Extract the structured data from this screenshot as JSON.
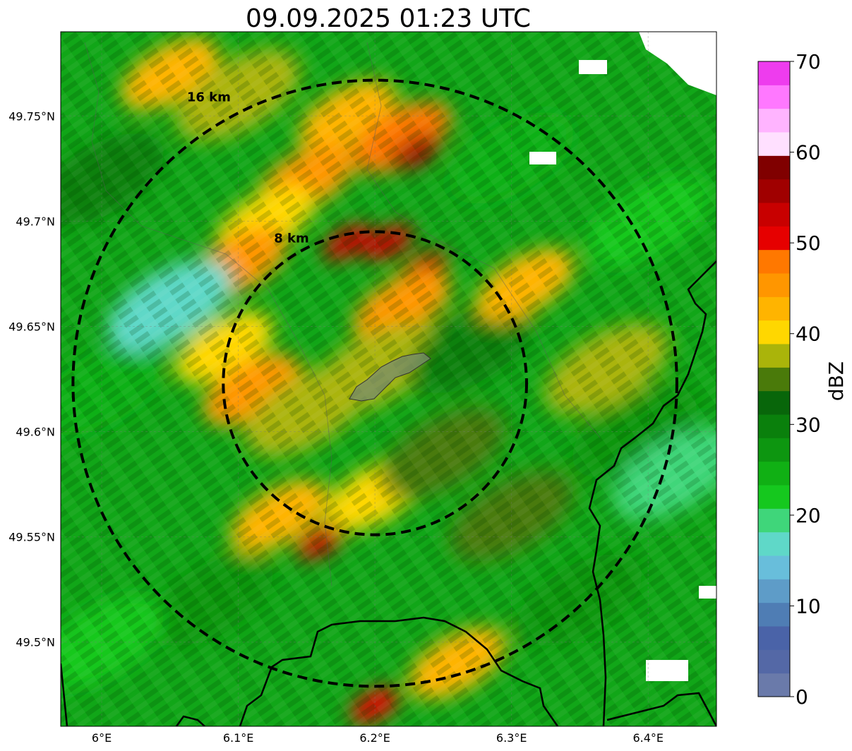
{
  "title": "09.09.2025 01:23 UTC",
  "map": {
    "lon_range": [
      5.97,
      6.45
    ],
    "lat_range": [
      49.46,
      49.79
    ],
    "x_ticks": [
      {
        "value": 6.0,
        "label": "6°E"
      },
      {
        "value": 6.1,
        "label": "6.1°E"
      },
      {
        "value": 6.2,
        "label": "6.2°E"
      },
      {
        "value": 6.3,
        "label": "6.3°E"
      },
      {
        "value": 6.4,
        "label": "6.4°E"
      }
    ],
    "y_ticks": [
      {
        "value": 49.75,
        "label": "49.75°N"
      },
      {
        "value": 49.7,
        "label": "49.7°N"
      },
      {
        "value": 49.65,
        "label": "49.65°N"
      },
      {
        "value": 49.6,
        "label": "49.6°N"
      },
      {
        "value": 49.55,
        "label": "49.55°N"
      },
      {
        "value": 49.5,
        "label": "49.5°N"
      }
    ],
    "center": {
      "lon": 6.2,
      "lat": 49.623
    },
    "range_rings": [
      {
        "label": "8 km",
        "radius_lon": 0.111,
        "radius_lat": 0.072
      },
      {
        "label": "16 km",
        "radius_lon": 0.221,
        "radius_lat": 0.144
      }
    ],
    "grid": true
  },
  "colorbar": {
    "label": "dBZ",
    "min": 0,
    "max": 70,
    "step": 5,
    "tick_labels": [
      "0",
      "10",
      "20",
      "30",
      "40",
      "50",
      "60",
      "70"
    ],
    "colors": [
      "#6a7aaa",
      "#5468a6",
      "#4a63a8",
      "#4f7db4",
      "#5e9cc8",
      "#68bedb",
      "#5fd8c8",
      "#3fd67a",
      "#15c81e",
      "#10b014",
      "#0d9610",
      "#0a800c",
      "#08660a",
      "#4a7a0a",
      "#aab40a",
      "#ffd700",
      "#ffb400",
      "#ff9600",
      "#ff7800",
      "#e60000",
      "#c80000",
      "#a00000",
      "#800000",
      "#ffe0ff",
      "#ffb4ff",
      "#ff78ff",
      "#ee3cee"
    ]
  },
  "cells": [
    {
      "lon": 6.05,
      "lat": 49.77,
      "dbz": 42
    },
    {
      "lon": 6.1,
      "lat": 49.76,
      "dbz": 38
    },
    {
      "lon": 6.18,
      "lat": 49.75,
      "dbz": 44
    },
    {
      "lon": 6.22,
      "lat": 49.74,
      "dbz": 47
    },
    {
      "lon": 6.23,
      "lat": 49.733,
      "dbz": 55
    },
    {
      "lon": 6.15,
      "lat": 49.72,
      "dbz": 45
    },
    {
      "lon": 6.12,
      "lat": 49.7,
      "dbz": 41
    },
    {
      "lon": 6.18,
      "lat": 49.69,
      "dbz": 52
    },
    {
      "lon": 6.21,
      "lat": 49.69,
      "dbz": 53
    },
    {
      "lon": 6.235,
      "lat": 49.677,
      "dbz": 52
    },
    {
      "lon": 6.22,
      "lat": 49.66,
      "dbz": 46
    },
    {
      "lon": 6.1,
      "lat": 49.68,
      "dbz": 46
    },
    {
      "lon": 6.09,
      "lat": 49.64,
      "dbz": 40
    },
    {
      "lon": 6.11,
      "lat": 49.62,
      "dbz": 45
    },
    {
      "lon": 6.15,
      "lat": 49.61,
      "dbz": 38
    },
    {
      "lon": 6.2,
      "lat": 49.63,
      "dbz": 38
    },
    {
      "lon": 6.27,
      "lat": 49.64,
      "dbz": 30
    },
    {
      "lon": 6.31,
      "lat": 49.67,
      "dbz": 44
    },
    {
      "lon": 6.37,
      "lat": 49.63,
      "dbz": 37
    },
    {
      "lon": 6.39,
      "lat": 49.6,
      "dbz": 26
    },
    {
      "lon": 6.35,
      "lat": 49.52,
      "dbz": 27
    },
    {
      "lon": 6.13,
      "lat": 49.56,
      "dbz": 44
    },
    {
      "lon": 6.16,
      "lat": 49.548,
      "dbz": 53
    },
    {
      "lon": 6.2,
      "lat": 49.57,
      "dbz": 40
    },
    {
      "lon": 6.25,
      "lat": 49.59,
      "dbz": 36
    },
    {
      "lon": 6.08,
      "lat": 49.52,
      "dbz": 28
    },
    {
      "lon": 6.0,
      "lat": 49.62,
      "dbz": 24
    },
    {
      "lon": 6.05,
      "lat": 49.66,
      "dbz": 18
    },
    {
      "lon": 6.26,
      "lat": 49.49,
      "dbz": 44
    },
    {
      "lon": 6.2,
      "lat": 49.47,
      "dbz": 51
    },
    {
      "lon": 6.3,
      "lat": 49.56,
      "dbz": 34
    },
    {
      "lon": 6.4,
      "lat": 49.7,
      "dbz": 23
    },
    {
      "lon": 6.42,
      "lat": 49.58,
      "dbz": 19
    },
    {
      "lon": 6.0,
      "lat": 49.5,
      "dbz": 22
    },
    {
      "lon": 6.0,
      "lat": 49.72,
      "dbz": 30
    },
    {
      "lon": 6.3,
      "lat": 49.73,
      "dbz": 25
    }
  ]
}
